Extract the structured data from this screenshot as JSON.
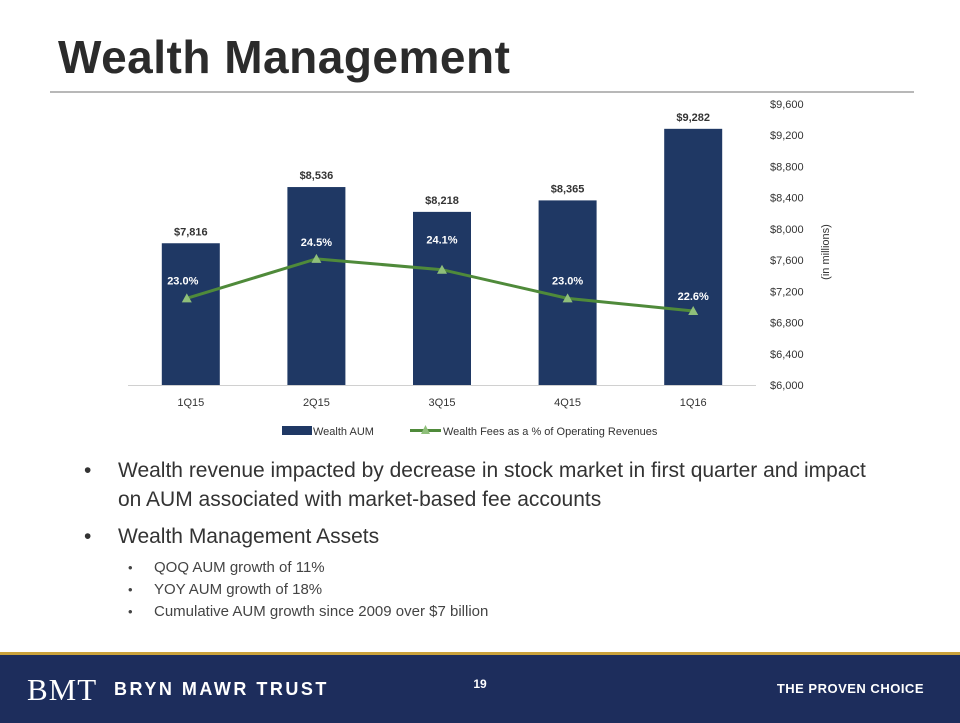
{
  "slide": {
    "title": "Wealth Management",
    "page_number": "19"
  },
  "colors": {
    "bar": "#1f3864",
    "line": "#4f8a3a",
    "marker": "#8fbf7a",
    "footer_bg": "#1d2d5c",
    "footer_rule": "#c9a13b"
  },
  "chart_data": {
    "type": "bar",
    "categories": [
      "1Q15",
      "2Q15",
      "3Q15",
      "4Q15",
      "1Q16"
    ],
    "series": [
      {
        "name": "Wealth AUM",
        "type": "bar",
        "axis": "right",
        "values": [
          7816,
          8536,
          8218,
          8365,
          9282
        ],
        "labels": [
          "$7,816",
          "$8,536",
          "$8,218",
          "$8,365",
          "$9,282"
        ]
      },
      {
        "name": "Wealth Fees as a % of Operating Revenues",
        "type": "line",
        "axis": "hidden",
        "values": [
          23.0,
          24.5,
          24.1,
          23.0,
          22.6
        ],
        "labels": [
          "23.0%",
          "24.5%",
          "24.1%",
          "23.0%",
          "22.6%"
        ],
        "plotted_level_in_right_axis_units": [
          7110,
          7616,
          7477,
          7110,
          6948
        ]
      }
    ],
    "ylim": [
      6000,
      9600
    ],
    "yticks": [
      "$6,000",
      "$6,400",
      "$6,800",
      "$7,200",
      "$7,600",
      "$8,000",
      "$8,400",
      "$8,800",
      "$9,200",
      "$9,600"
    ],
    "ytick_values": [
      6000,
      6400,
      6800,
      7200,
      7600,
      8000,
      8400,
      8800,
      9200,
      9600
    ],
    "ylabel": "(in millions)",
    "y_axis_side": "right",
    "legend_position": "bottom",
    "grid": false
  },
  "bullets": [
    {
      "text": "Wealth revenue impacted by decrease in stock market in first quarter and impact on AUM associated with market-based fee accounts",
      "sub": []
    },
    {
      "text": "Wealth Management Assets",
      "sub": [
        "QOQ AUM growth of 11%",
        "YOY AUM growth of 18%",
        "Cumulative AUM growth since 2009 over $7 billion"
      ]
    }
  ],
  "footer": {
    "logo_mark": "BMT",
    "logo_text": "BRYN MAWR TRUST",
    "tagline": "THE PROVEN CHOICE"
  }
}
